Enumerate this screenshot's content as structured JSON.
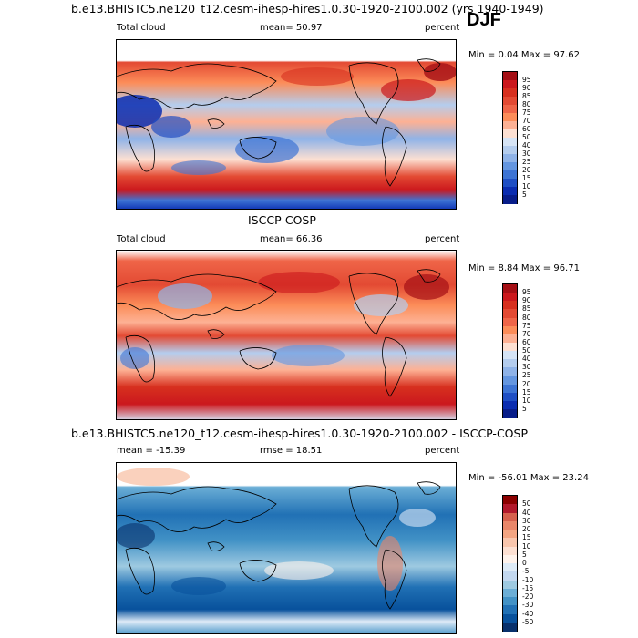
{
  "header": {
    "title": "b.e13.BHISTC5.ne120_t12.cesm-ihesp-hires1.0.30-1920-2100.002 (yrs 1940-1949)",
    "season": "DJF"
  },
  "colors": {
    "land_outline": "#000000",
    "ocean_missing": "#ffffff"
  },
  "panels": [
    {
      "subtitle": "",
      "left_label": "Total cloud",
      "center_label": "mean=  50.97",
      "right_label": "percent",
      "minmax": "Min =   0.04 Max =  97.62",
      "colorbar": {
        "labels": [
          "95",
          "90",
          "85",
          "80",
          "75",
          "70",
          "60",
          "50",
          "40",
          "30",
          "25",
          "20",
          "15",
          "10",
          "5"
        ],
        "colors": [
          "#a50f15",
          "#cb181d",
          "#d7301f",
          "#e34a33",
          "#ef6548",
          "#fc8d59",
          "#fdb194",
          "#fde0d2",
          "#d6e4f5",
          "#b4cdee",
          "#8fb3e8",
          "#6496e0",
          "#3d74d4",
          "#1f4fc4",
          "#0b2db0",
          "#081d8a"
        ]
      }
    },
    {
      "subtitle": "ISCCP-COSP",
      "left_label": "Total cloud",
      "center_label": "mean=  66.36",
      "right_label": "percent",
      "minmax": "Min =   8.84 Max =  96.71",
      "colorbar": {
        "labels": [
          "95",
          "90",
          "85",
          "80",
          "75",
          "70",
          "60",
          "50",
          "40",
          "30",
          "25",
          "20",
          "15",
          "10",
          "5"
        ],
        "colors": [
          "#a50f15",
          "#cb181d",
          "#d7301f",
          "#e34a33",
          "#ef6548",
          "#fc8d59",
          "#fdb194",
          "#fde0d2",
          "#d6e4f5",
          "#b4cdee",
          "#8fb3e8",
          "#6496e0",
          "#3d74d4",
          "#1f4fc4",
          "#0b2db0",
          "#081d8a"
        ]
      }
    },
    {
      "subtitle": "b.e13.BHISTC5.ne120_t12.cesm-ihesp-hires1.0.30-1920-2100.002 - ISCCP-COSP",
      "left_label": "mean = -15.39",
      "center_label": "rmse =  18.51",
      "right_label": "percent",
      "minmax": "Min = -56.01 Max =  23.24",
      "colorbar": {
        "labels": [
          "50",
          "40",
          "30",
          "20",
          "15",
          "10",
          "5",
          "0",
          "-5",
          "-10",
          "-15",
          "-20",
          "-30",
          "-40",
          "-50"
        ],
        "colors": [
          "#8b0000",
          "#b2182b",
          "#d6604d",
          "#e98669",
          "#f4a582",
          "#f9c6ad",
          "#fde0d2",
          "#fff3ec",
          "#deebf7",
          "#c3d8f0",
          "#9ecae1",
          "#6baed6",
          "#4292c6",
          "#2171b5",
          "#08519c",
          "#08306b"
        ]
      }
    }
  ]
}
